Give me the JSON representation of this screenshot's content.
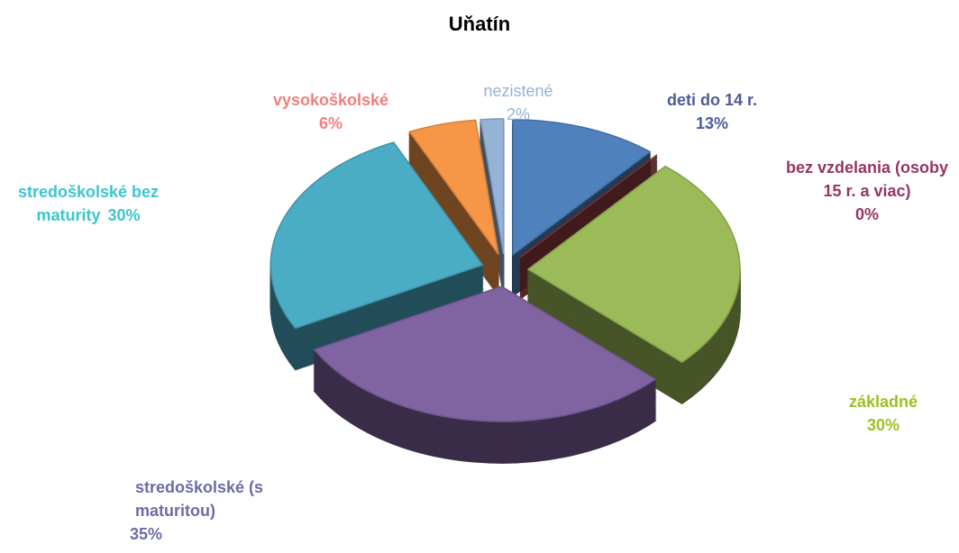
{
  "chart_data": {
    "type": "pie",
    "title": "Uňatín",
    "categories": [
      "deti do 14 r.",
      "bez vzdelania (osoby 15 r. a viac)",
      "základné",
      "stredoškolské (s maturitou)",
      "stredoškolské bez maturity",
      "vysokoškolské",
      "nezistené"
    ],
    "values": [
      13,
      0,
      30,
      35,
      30,
      6,
      2
    ],
    "value_labels": [
      "13%",
      "0%",
      "30%",
      "35%",
      "30%",
      "6%",
      "2%"
    ],
    "colors": [
      "#4f81bd",
      "#943634",
      "#9bbb59",
      "#8064a2",
      "#4bacc6",
      "#f79646",
      "#95b3d7"
    ],
    "label_colors": [
      "#4f5b9a",
      "#953563",
      "#9dc01e",
      "#6d6aa8",
      "#3cc6cf",
      "#f27f7f",
      "#95b3d7"
    ]
  }
}
